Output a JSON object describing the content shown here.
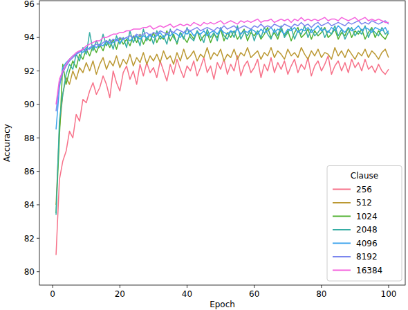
{
  "chart_data": {
    "type": "line",
    "x_label": "Epoch",
    "y_label": "Accuracy",
    "legend_title": "Clause",
    "legend": "lower right",
    "grid": false,
    "xlim": [
      -3.95,
      104.95
    ],
    "xticks": [
      0,
      20,
      40,
      60,
      80,
      100
    ],
    "ylim": [
      79.2,
      96.2
    ],
    "yticks": [
      80,
      82,
      84,
      86,
      88,
      90,
      92,
      94,
      96
    ],
    "x": [
      1,
      2,
      3,
      4,
      5,
      6,
      7,
      8,
      9,
      10,
      11,
      12,
      13,
      14,
      15,
      16,
      17,
      18,
      19,
      20,
      21,
      22,
      23,
      24,
      25,
      26,
      27,
      28,
      29,
      30,
      31,
      32,
      33,
      34,
      35,
      36,
      37,
      38,
      39,
      40,
      41,
      42,
      43,
      44,
      45,
      46,
      47,
      48,
      49,
      50,
      51,
      52,
      53,
      54,
      55,
      56,
      57,
      58,
      59,
      60,
      61,
      62,
      63,
      64,
      65,
      66,
      67,
      68,
      69,
      70,
      71,
      72,
      73,
      74,
      75,
      76,
      77,
      78,
      79,
      80,
      81,
      82,
      83,
      84,
      85,
      86,
      87,
      88,
      89,
      90,
      91,
      92,
      93,
      94,
      95,
      96,
      97,
      98,
      99,
      100
    ],
    "series": [
      {
        "name": "256",
        "color": "#f77189",
        "values": [
          81.0,
          85.5,
          86.6,
          87.2,
          88.4,
          88.0,
          89.4,
          89.0,
          90.3,
          90.1,
          90.8,
          91.3,
          90.6,
          91.0,
          91.7,
          91.2,
          90.4,
          92.0,
          91.3,
          90.8,
          91.9,
          92.3,
          91.5,
          92.0,
          91.2,
          92.4,
          91.7,
          92.5,
          91.9,
          92.2,
          91.6,
          92.6,
          92.0,
          91.4,
          92.4,
          91.8,
          92.7,
          92.1,
          91.6,
          92.3,
          92.0,
          92.6,
          91.7,
          92.2,
          92.8,
          91.9,
          92.3,
          91.5,
          92.5,
          92.1,
          92.7,
          91.8,
          92.4,
          92.0,
          92.9,
          91.7,
          92.3,
          92.6,
          91.9,
          92.2,
          92.7,
          91.6,
          92.4,
          92.0,
          92.8,
          91.9,
          92.5,
          92.1,
          92.6,
          91.8,
          92.3,
          92.7,
          91.9,
          92.4,
          92.1,
          92.8,
          91.7,
          92.3,
          92.6,
          92.0,
          92.4,
          92.9,
          91.8,
          92.3,
          92.6,
          92.0,
          92.5,
          91.9,
          92.7,
          92.2,
          92.5,
          92.0,
          92.7,
          92.1,
          92.3,
          91.9,
          92.4,
          92.0,
          91.8,
          92.1
        ]
      },
      {
        "name": "512",
        "color": "#bb9832",
        "values": [
          84.0,
          88.5,
          90.6,
          91.6,
          91.2,
          92.0,
          91.5,
          92.2,
          91.9,
          92.5,
          92.0,
          92.6,
          91.8,
          92.4,
          92.8,
          92.1,
          92.6,
          92.3,
          92.9,
          92.2,
          92.7,
          92.4,
          93.0,
          92.3,
          92.8,
          92.5,
          93.1,
          92.4,
          92.9,
          92.6,
          93.0,
          92.5,
          93.2,
          92.7,
          92.9,
          92.4,
          93.1,
          92.6,
          93.3,
          92.7,
          92.9,
          93.2,
          92.6,
          93.0,
          92.8,
          93.4,
          92.7,
          93.1,
          92.9,
          93.3,
          92.6,
          93.0,
          92.8,
          93.3,
          92.7,
          93.1,
          92.9,
          93.4,
          92.8,
          93.0,
          93.2,
          92.7,
          93.1,
          92.9,
          93.4,
          92.8,
          93.2,
          93.0,
          92.7,
          93.3,
          92.9,
          93.1,
          92.8,
          93.4,
          93.0,
          92.7,
          93.2,
          92.9,
          93.3,
          92.8,
          93.1,
          93.0,
          92.7,
          93.4,
          92.9,
          93.2,
          92.8,
          93.3,
          93.0,
          92.7,
          93.1,
          92.9,
          93.3,
          92.8,
          93.2,
          93.0,
          92.7,
          93.1,
          93.3,
          92.8
        ]
      },
      {
        "name": "1024",
        "color": "#50b131",
        "values": [
          83.5,
          88.0,
          92.4,
          91.2,
          92.0,
          92.6,
          92.2,
          93.0,
          92.7,
          93.3,
          92.9,
          93.5,
          93.1,
          93.6,
          93.2,
          93.8,
          93.4,
          93.9,
          93.3,
          94.0,
          93.6,
          93.9,
          93.5,
          94.1,
          93.7,
          94.2,
          93.6,
          94.0,
          93.8,
          94.3,
          93.7,
          94.1,
          93.9,
          94.4,
          93.8,
          94.2,
          93.6,
          94.3,
          94.0,
          93.7,
          94.2,
          93.9,
          94.4,
          93.8,
          94.1,
          94.3,
          93.7,
          94.2,
          94.0,
          94.5,
          93.8,
          94.3,
          94.0,
          94.4,
          93.9,
          94.2,
          94.5,
          93.8,
          94.3,
          94.1,
          94.4,
          93.9,
          94.2,
          94.6,
          94.0,
          94.3,
          93.9,
          94.5,
          94.1,
          94.4,
          93.8,
          94.3,
          94.6,
          94.0,
          94.2,
          94.5,
          93.9,
          94.4,
          94.1,
          94.3,
          94.6,
          94.0,
          94.2,
          94.5,
          93.9,
          94.3,
          94.1,
          94.6,
          94.0,
          94.4,
          94.2,
          94.5,
          93.9,
          94.3,
          94.6,
          94.0,
          94.4,
          94.1,
          93.9,
          94.3
        ]
      },
      {
        "name": "2048",
        "color": "#36ada4",
        "values": [
          83.4,
          89.0,
          90.6,
          91.8,
          92.4,
          92.1,
          93.0,
          92.6,
          93.4,
          93.0,
          94.3,
          93.2,
          93.8,
          93.4,
          94.2,
          93.5,
          93.9,
          93.3,
          94.1,
          93.6,
          94.0,
          93.4,
          94.4,
          93.7,
          94.1,
          93.5,
          94.5,
          93.8,
          94.2,
          93.6,
          94.4,
          93.9,
          94.1,
          93.6,
          94.5,
          94.0,
          93.7,
          94.3,
          93.9,
          94.6,
          94.0,
          93.8,
          94.4,
          94.1,
          93.7,
          94.5,
          94.0,
          94.3,
          93.8,
          94.6,
          94.1,
          93.9,
          94.4,
          94.0,
          94.7,
          93.9,
          94.3,
          94.1,
          94.5,
          93.8,
          94.4,
          94.0,
          94.6,
          94.2,
          93.9,
          94.5,
          94.1,
          94.7,
          94.0,
          94.3,
          94.6,
          93.9,
          94.4,
          94.2,
          94.7,
          94.0,
          94.5,
          94.1,
          94.3,
          94.6,
          94.0,
          94.4,
          94.2,
          94.7,
          94.1,
          94.5,
          93.9,
          94.3,
          94.6,
          94.1,
          94.4,
          94.2,
          94.7,
          94.0,
          94.5,
          94.3,
          94.1,
          94.6,
          94.2,
          94.4
        ]
      },
      {
        "name": "4096",
        "color": "#3ba3ec",
        "values": [
          88.5,
          91.0,
          92.2,
          92.5,
          92.7,
          92.9,
          93.0,
          93.2,
          93.1,
          93.4,
          93.3,
          93.5,
          93.4,
          93.6,
          93.5,
          93.8,
          93.6,
          93.7,
          93.9,
          93.7,
          93.9,
          94.0,
          93.8,
          94.0,
          94.1,
          93.9,
          94.1,
          94.0,
          94.2,
          94.0,
          94.1,
          94.3,
          94.0,
          94.2,
          94.1,
          94.3,
          94.2,
          94.0,
          94.3,
          94.2,
          94.4,
          94.1,
          94.3,
          94.2,
          94.4,
          94.1,
          94.3,
          94.4,
          94.2,
          94.5,
          94.3,
          94.2,
          94.4,
          94.3,
          94.5,
          94.2,
          94.4,
          94.3,
          94.5,
          94.4,
          94.2,
          94.5,
          94.3,
          94.4,
          94.6,
          94.3,
          94.5,
          94.4,
          94.2,
          94.5,
          94.4,
          94.6,
          94.3,
          94.5,
          94.4,
          94.6,
          94.3,
          94.5,
          94.7,
          94.4,
          94.5,
          94.3,
          94.6,
          94.4,
          94.7,
          94.5,
          94.3,
          94.6,
          94.4,
          94.5,
          94.7,
          94.4,
          94.6,
          94.5,
          94.3,
          94.6,
          94.5,
          94.4,
          94.6,
          94.2
        ]
      },
      {
        "name": "8192",
        "color": "#7b86ee",
        "values": [
          89.6,
          91.2,
          91.9,
          92.3,
          92.6,
          92.8,
          93.0,
          93.1,
          93.3,
          93.2,
          93.4,
          93.5,
          93.6,
          93.5,
          93.7,
          93.8,
          93.7,
          93.9,
          93.8,
          94.0,
          93.9,
          94.0,
          94.1,
          94.0,
          94.2,
          94.1,
          94.2,
          94.3,
          94.1,
          94.3,
          94.2,
          94.4,
          94.3,
          94.2,
          94.4,
          94.3,
          94.5,
          94.4,
          94.3,
          94.5,
          94.4,
          94.5,
          94.6,
          94.4,
          94.5,
          94.6,
          94.5,
          94.4,
          94.6,
          94.5,
          94.7,
          94.5,
          94.6,
          94.7,
          94.5,
          94.6,
          94.7,
          94.6,
          94.5,
          94.7,
          94.6,
          94.8,
          94.6,
          94.7,
          94.6,
          94.8,
          94.7,
          94.6,
          94.8,
          94.7,
          94.6,
          94.8,
          94.7,
          94.9,
          94.7,
          94.8,
          94.6,
          94.8,
          94.9,
          94.7,
          94.8,
          94.9,
          94.7,
          94.8,
          94.9,
          94.8,
          94.7,
          94.9,
          94.8,
          94.9,
          95.0,
          94.8,
          94.9,
          94.8,
          95.0,
          94.9,
          94.8,
          94.9,
          95.0,
          94.8
        ]
      },
      {
        "name": "16384",
        "color": "#f561dd",
        "values": [
          90.0,
          91.5,
          92.0,
          92.4,
          92.7,
          92.9,
          93.1,
          93.2,
          93.3,
          93.5,
          93.6,
          93.7,
          93.8,
          93.8,
          94.0,
          94.0,
          94.1,
          94.2,
          94.2,
          94.3,
          94.3,
          94.4,
          94.4,
          94.5,
          94.5,
          94.5,
          94.6,
          94.6,
          94.7,
          94.5,
          94.6,
          94.7,
          94.6,
          94.7,
          94.8,
          94.6,
          94.7,
          94.8,
          94.7,
          94.8,
          94.7,
          94.9,
          94.8,
          94.7,
          94.9,
          94.8,
          94.9,
          94.8,
          94.9,
          95.0,
          94.8,
          94.9,
          95.0,
          94.9,
          94.8,
          95.0,
          94.9,
          95.0,
          94.9,
          95.0,
          95.1,
          94.9,
          95.0,
          95.0,
          95.1,
          94.9,
          95.0,
          95.1,
          95.0,
          95.1,
          94.9,
          95.1,
          95.0,
          95.2,
          95.0,
          95.1,
          95.0,
          95.1,
          95.0,
          95.1,
          95.2,
          95.0,
          95.1,
          95.1,
          95.0,
          95.2,
          95.1,
          95.0,
          95.1,
          95.2,
          95.0,
          95.1,
          95.2,
          95.0,
          95.1,
          95.0,
          95.1,
          95.0,
          94.9,
          94.9
        ]
      }
    ]
  }
}
